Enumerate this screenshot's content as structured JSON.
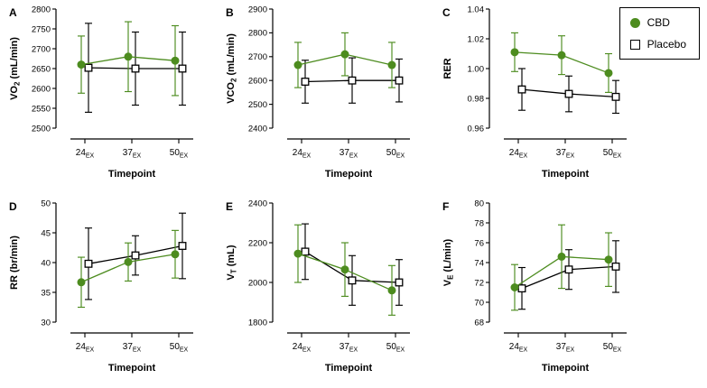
{
  "figure": {
    "background": "#ffffff"
  },
  "legend": {
    "items": [
      {
        "label": "CBD",
        "marker": "filled-circle-icon",
        "color": "#4d8c1f"
      },
      {
        "label": "Placebo",
        "marker": "open-square-icon",
        "color": "#000000"
      }
    ]
  },
  "chart_data": {
    "type": "line",
    "categories": [
      "24",
      "37",
      "50"
    ],
    "category_subscript": "EX",
    "xlabel": "Timepoint",
    "legend_position": "top-right",
    "grid": false,
    "colors": {
      "CBD": "#4d8c1f",
      "Placebo": "#000000"
    },
    "panels": [
      {
        "label": "A",
        "ylabel_parts": [
          {
            "t": "VO"
          },
          {
            "t": "2",
            "sub": true
          },
          {
            "t": " (mL/min)"
          }
        ],
        "ylim": [
          2500,
          2800
        ],
        "ytick_step": 50,
        "decimals": 0,
        "series": [
          {
            "name": "CBD",
            "values": [
              2660,
              2680,
              2670
            ],
            "errors": [
              72,
              88,
              88
            ]
          },
          {
            "name": "Placebo",
            "values": [
              2652,
              2650,
              2650
            ],
            "errors": [
              112,
              92,
              92
            ]
          }
        ]
      },
      {
        "label": "B",
        "ylabel_parts": [
          {
            "t": "VCO"
          },
          {
            "t": "2",
            "sub": true
          },
          {
            "t": " (mL/min)"
          }
        ],
        "ylim": [
          2400,
          2900
        ],
        "ytick_step": 100,
        "decimals": 0,
        "series": [
          {
            "name": "CBD",
            "values": [
              2665,
              2710,
              2665
            ],
            "errors": [
              95,
              90,
              95
            ]
          },
          {
            "name": "Placebo",
            "values": [
              2595,
              2600,
              2600
            ],
            "errors": [
              90,
              95,
              90
            ]
          }
        ]
      },
      {
        "label": "C",
        "ylabel_parts": [
          {
            "t": "RER"
          }
        ],
        "ylim": [
          0.96,
          1.04
        ],
        "ytick_step": 0.02,
        "decimals": 2,
        "series": [
          {
            "name": "CBD",
            "values": [
              1.011,
              1.009,
              0.997
            ],
            "errors": [
              0.013,
              0.013,
              0.013
            ]
          },
          {
            "name": "Placebo",
            "values": [
              0.986,
              0.983,
              0.981
            ],
            "errors": [
              0.014,
              0.012,
              0.011
            ]
          }
        ]
      },
      {
        "label": "D",
        "ylabel_parts": [
          {
            "t": "RR (br/min)"
          }
        ],
        "ylim": [
          30,
          50
        ],
        "ytick_step": 5,
        "decimals": 0,
        "series": [
          {
            "name": "CBD",
            "values": [
              36.7,
              40.1,
              41.4
            ],
            "errors": [
              4.2,
              3.2,
              4.0
            ]
          },
          {
            "name": "Placebo",
            "values": [
              39.8,
              41.2,
              42.8
            ],
            "errors": [
              6.0,
              3.3,
              5.5
            ]
          }
        ]
      },
      {
        "label": "E",
        "ylabel_parts": [
          {
            "t": "V"
          },
          {
            "t": "T",
            "sub": true
          },
          {
            "t": " (mL)"
          }
        ],
        "ylim": [
          1800,
          2400
        ],
        "ytick_step": 200,
        "decimals": 0,
        "series": [
          {
            "name": "CBD",
            "values": [
              2145,
              2065,
              1960
            ],
            "errors": [
              145,
              135,
              125
            ]
          },
          {
            "name": "Placebo",
            "values": [
              2155,
              2010,
              2000
            ],
            "errors": [
              140,
              125,
              115
            ]
          }
        ]
      },
      {
        "label": "F",
        "ylabel_parts": [
          {
            "t": "V"
          },
          {
            "t": "E",
            "sub": true
          },
          {
            "t": " (L/min)"
          }
        ],
        "ylim": [
          68,
          80
        ],
        "ytick_step": 2,
        "decimals": 0,
        "series": [
          {
            "name": "CBD",
            "values": [
              71.5,
              74.6,
              74.3
            ],
            "errors": [
              2.3,
              3.2,
              2.7
            ]
          },
          {
            "name": "Placebo",
            "values": [
              71.4,
              73.3,
              73.6
            ],
            "errors": [
              2.1,
              2.0,
              2.6
            ]
          }
        ]
      }
    ]
  }
}
